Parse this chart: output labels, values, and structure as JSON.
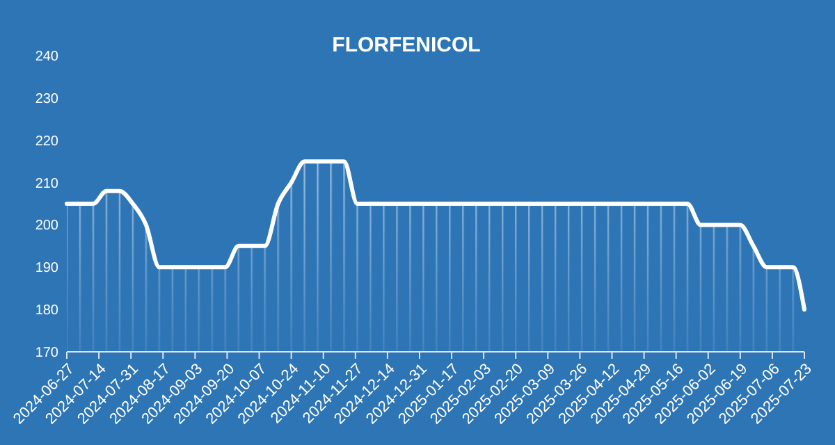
{
  "chart_data": {
    "type": "area",
    "title": "FLORFENICOL",
    "x": [
      "2024-06-27",
      "2024-07-04",
      "2024-07-11",
      "2024-07-18",
      "2024-07-25",
      "2024-08-01",
      "2024-08-08",
      "2024-08-15",
      "2024-08-22",
      "2024-08-29",
      "2024-09-05",
      "2024-09-12",
      "2024-09-19",
      "2024-09-26",
      "2024-10-03",
      "2024-10-10",
      "2024-10-17",
      "2024-10-24",
      "2024-10-31",
      "2024-11-07",
      "2024-11-14",
      "2024-11-21",
      "2024-11-28",
      "2024-12-05",
      "2024-12-12",
      "2024-12-19",
      "2024-12-26",
      "2025-01-02",
      "2025-01-09",
      "2025-01-16",
      "2025-01-23",
      "2025-01-30",
      "2025-02-06",
      "2025-02-13",
      "2025-02-20",
      "2025-02-27",
      "2025-03-06",
      "2025-03-13",
      "2025-03-20",
      "2025-03-27",
      "2025-04-03",
      "2025-04-10",
      "2025-04-17",
      "2025-04-24",
      "2025-05-01",
      "2025-05-08",
      "2025-05-15",
      "2025-05-22",
      "2025-05-29",
      "2025-06-05",
      "2025-06-12",
      "2025-06-19",
      "2025-06-26",
      "2025-07-03",
      "2025-07-10",
      "2025-07-17",
      "2025-07-23"
    ],
    "series": [
      {
        "color": "#ffffff",
        "values": [
          205,
          205,
          205,
          208,
          208,
          205,
          200,
          190,
          190,
          190,
          190,
          190,
          190,
          195,
          195,
          195,
          205,
          210,
          215,
          215,
          215,
          215,
          205,
          205,
          205,
          205,
          205,
          205,
          205,
          205,
          205,
          205,
          205,
          205,
          205,
          205,
          205,
          205,
          205,
          205,
          205,
          205,
          205,
          205,
          205,
          205,
          205,
          205,
          200,
          200,
          200,
          200,
          195,
          190,
          190,
          190,
          180
        ]
      }
    ],
    "xlim": [
      "2024-06-27",
      "2025-07-23"
    ],
    "xticks": [
      "2024-06-27",
      "2024-07-14",
      "2024-07-31",
      "2024-08-17",
      "2024-09-03",
      "2024-09-20",
      "2024-10-07",
      "2024-10-24",
      "2024-11-10",
      "2024-11-27",
      "2024-12-14",
      "2024-12-31",
      "2025-01-17",
      "2025-02-03",
      "2025-02-20",
      "2025-03-09",
      "2025-03-26",
      "2025-04-12",
      "2025-04-29",
      "2025-05-16",
      "2025-06-02",
      "2025-06-19",
      "2025-07-06",
      "2025-07-23"
    ],
    "ylim": [
      170,
      240
    ],
    "yticks": [
      170,
      180,
      190,
      200,
      210,
      220,
      230,
      240
    ],
    "grid": false,
    "marker": "none",
    "line_style": "solid"
  }
}
